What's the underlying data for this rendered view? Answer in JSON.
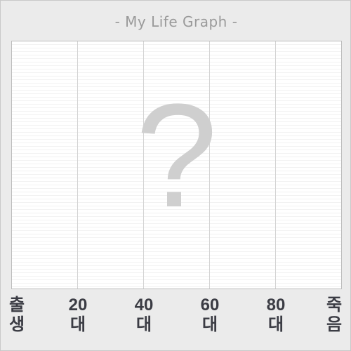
{
  "chart_data": {
    "type": "line",
    "title": "- My Life Graph -",
    "placeholder_mark": "?",
    "x_ticks": [
      {
        "top": "출",
        "bottom": "생"
      },
      {
        "top": "20",
        "bottom": "대"
      },
      {
        "top": "40",
        "bottom": "대"
      },
      {
        "top": "60",
        "bottom": "대"
      },
      {
        "top": "80",
        "bottom": "대"
      },
      {
        "top": "죽",
        "bottom": "음"
      }
    ],
    "grid": true,
    "series": []
  }
}
